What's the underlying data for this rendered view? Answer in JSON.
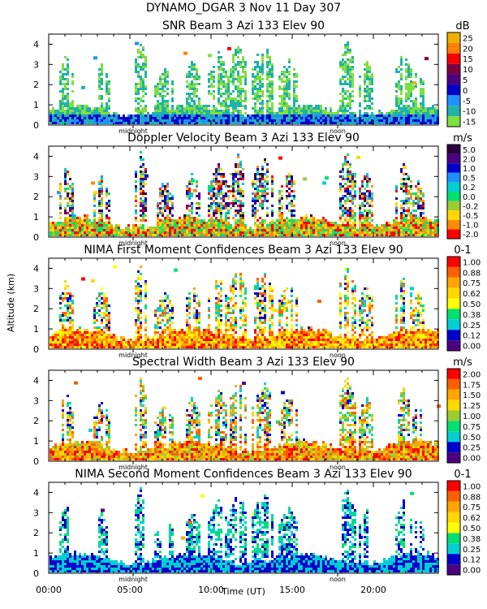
{
  "header": {
    "title": "DYNAMO_DGAR    3 Nov 11 Day 307"
  },
  "axes": {
    "ylabel": "Altitude (km)",
    "xlabel": "Time (UT)",
    "x_ticks": [
      "00:00",
      "05:00",
      "10:00",
      "15:00",
      "20:00"
    ],
    "x_tick_hours": [
      0,
      5,
      10,
      15,
      20
    ],
    "xlim": [
      0,
      24
    ],
    "ylim": [
      0,
      4.5
    ],
    "y_ticks": [
      0,
      1,
      2,
      3,
      4
    ],
    "markers": [
      {
        "label": "midnight",
        "hour": 5.2
      },
      {
        "label": "noon",
        "hour": 17.8
      }
    ]
  },
  "chart_data": [
    {
      "type": "heatmap",
      "title": "SNR Beam 3 Azi 133 Elev 90",
      "unit": "dB",
      "colorbar_labels": [
        "25",
        "20",
        "15",
        "10",
        "5",
        "0",
        "-5",
        "-10",
        "-15"
      ],
      "colorbar_colors": [
        "#f0b000",
        "#ff8000",
        "#ff0000",
        "#800040",
        "#4b0082",
        "#0000cd",
        "#1e90ff",
        "#20b2aa",
        "#7fdf3f"
      ],
      "ylim": [
        0,
        4.5
      ],
      "xlim": [
        0,
        24
      ]
    },
    {
      "type": "heatmap",
      "title": "Doppler Velocity Beam 3 Azi 133 Elev 90",
      "unit": "m/s",
      "colorbar_labels": [
        "5.0",
        "2.0",
        "1.0",
        "0.5",
        "0.2",
        "0.0",
        "-0.2",
        "-0.5",
        "-1.0",
        "-2.0"
      ],
      "colorbar_colors": [
        "#2b0040",
        "#4b0082",
        "#0000cd",
        "#1e90ff",
        "#00ced1",
        "#00e070",
        "#9acd32",
        "#ffd700",
        "#ff8c00",
        "#ff0000"
      ],
      "ylim": [
        0,
        4.5
      ],
      "xlim": [
        0,
        24
      ]
    },
    {
      "type": "heatmap",
      "title": "NIMA First Moment Confidences Beam 3 Azi 133 Elev 90",
      "unit": "0-1",
      "colorbar_labels": [
        "1.00",
        "0.88",
        "0.75",
        "0.62",
        "0.50",
        "0.38",
        "0.25",
        "0.12",
        "0.00"
      ],
      "colorbar_colors": [
        "#ff0000",
        "#ff6000",
        "#ffa500",
        "#ffd700",
        "#ffff00",
        "#00e070",
        "#00ced1",
        "#0000cd",
        "#4b0082"
      ],
      "ylim": [
        0,
        4.5
      ],
      "xlim": [
        0,
        24
      ]
    },
    {
      "type": "heatmap",
      "title": "Spectral Width Beam 3 Azi 133 Elev 90",
      "unit": "m/s",
      "colorbar_labels": [
        "2.00",
        "1.75",
        "1.50",
        "1.25",
        "1.00",
        "0.75",
        "0.50",
        "0.25",
        "0.00"
      ],
      "colorbar_colors": [
        "#ff0000",
        "#ff6000",
        "#ffa500",
        "#ffd700",
        "#9acd32",
        "#00e070",
        "#00ced1",
        "#0000cd",
        "#4b0082"
      ],
      "ylim": [
        0,
        4.5
      ],
      "xlim": [
        0,
        24
      ]
    },
    {
      "type": "heatmap",
      "title": "NIMA Second Moment Confidences Beam 3 Azi 133 Elev 90",
      "unit": "0-1",
      "colorbar_labels": [
        "1.00",
        "0.88",
        "0.75",
        "0.62",
        "0.50",
        "0.38",
        "0.25",
        "0.12",
        "0.00"
      ],
      "colorbar_colors": [
        "#ff0000",
        "#ff6000",
        "#ffa500",
        "#ffd700",
        "#ffff00",
        "#00e070",
        "#00ced1",
        "#0000cd",
        "#4b0082"
      ],
      "ylim": [
        0,
        4.5
      ],
      "xlim": [
        0,
        24
      ]
    }
  ]
}
